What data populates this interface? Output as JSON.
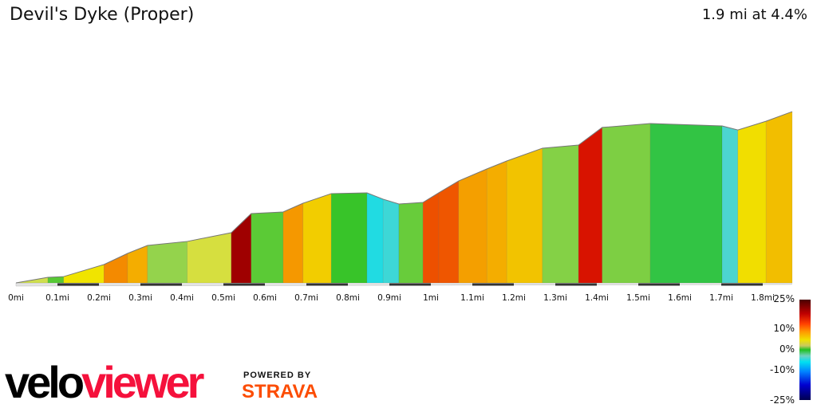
{
  "header": {
    "title": "Devil's Dyke (Proper)",
    "summary": "1.9 mi at 4.4%"
  },
  "legend": {
    "labels": [
      "25%",
      "10%",
      "0%",
      "-10%",
      "-25%"
    ]
  },
  "branding": {
    "logo_part1": "velo",
    "logo_part2": "viewer",
    "powered_by": "POWERED BY",
    "strava": "STRAVA",
    "logo_color": "#f5113c",
    "strava_color": "#fc4c02"
  },
  "chart_data": {
    "type": "area",
    "title": "",
    "xlabel": "",
    "ylabel": "",
    "x_unit": "mi",
    "xlim": [
      0,
      1.87
    ],
    "x_ticks": [
      "0mi",
      "0.1mi",
      "0.2mi",
      "0.3mi",
      "0.4mi",
      "0.5mi",
      "0.6mi",
      "0.7mi",
      "0.8mi",
      "0.9mi",
      "1mi",
      "1.1mi",
      "1.2mi",
      "1.3mi",
      "1.4mi",
      "1.5mi",
      "1.6mi",
      "1.7mi",
      "1.8mi"
    ],
    "color_by": "gradient",
    "points": [
      [
        0,
        0
      ],
      [
        0.077,
        4.4
      ],
      [
        0.115,
        5.0
      ],
      [
        0.212,
        14.5
      ],
      [
        0.269,
        23.3
      ],
      [
        0.317,
        29.6
      ],
      [
        0.413,
        32.8
      ],
      [
        0.519,
        39.7
      ],
      [
        0.567,
        54.8
      ],
      [
        0.644,
        56.1
      ],
      [
        0.692,
        63.0
      ],
      [
        0.76,
        70.6
      ],
      [
        0.846,
        71.2
      ],
      [
        0.885,
        66.2
      ],
      [
        0.923,
        62.4
      ],
      [
        0.981,
        63.6
      ],
      [
        1.019,
        71.2
      ],
      [
        1.067,
        80.6
      ],
      [
        1.135,
        90.1
      ],
      [
        1.183,
        96.4
      ],
      [
        1.269,
        106.5
      ],
      [
        1.356,
        109.0
      ],
      [
        1.413,
        122.9
      ],
      [
        1.529,
        126.0
      ],
      [
        1.702,
        124.1
      ],
      [
        1.74,
        120.9
      ],
      [
        1.808,
        127.8
      ],
      [
        1.871,
        135.4
      ]
    ]
  }
}
